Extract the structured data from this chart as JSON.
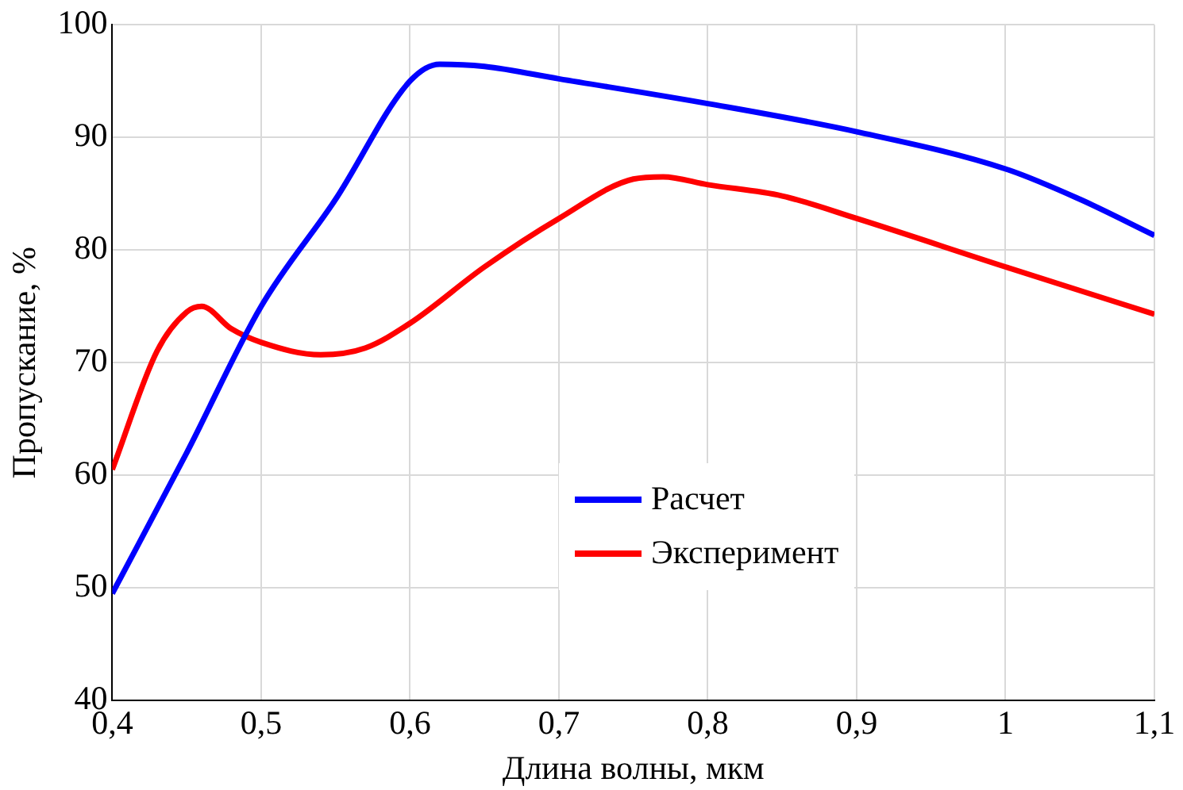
{
  "chart_data": {
    "type": "line",
    "xlabel": "Длина волны, мкм",
    "ylabel": "Пропускание, %",
    "xlim": [
      0.4,
      1.1
    ],
    "xticks": [
      {
        "value": 0.4,
        "label": "0,4"
      },
      {
        "value": 0.5,
        "label": "0,5"
      },
      {
        "value": 0.6,
        "label": "0,6"
      },
      {
        "value": 0.7,
        "label": "0,7"
      },
      {
        "value": 0.8,
        "label": "0,8"
      },
      {
        "value": 0.9,
        "label": "0,9"
      },
      {
        "value": 1,
        "label": "1"
      },
      {
        "value": 1.1,
        "label": "1,1"
      }
    ],
    "ylim": [
      40,
      100
    ],
    "yticks": [
      40,
      50,
      60,
      70,
      80,
      90,
      100
    ],
    "grid": true,
    "legend": "bottom right",
    "marker": "none",
    "line_style": "solid",
    "series": [
      {
        "name": "Расчет",
        "color": "#0000ff",
        "x": [
          0.4,
          0.45,
          0.5,
          0.55,
          0.6,
          0.62,
          0.65,
          0.7,
          0.8,
          0.9,
          1.0,
          1.05,
          1.1
        ],
        "values": [
          49.5,
          62,
          75,
          84.5,
          95,
          96.5,
          96.3,
          95.2,
          93,
          90.5,
          87.2,
          84.5,
          81.3
        ]
      },
      {
        "name": "Эксперимент",
        "color": "#ff0000",
        "x": [
          0.4,
          0.43,
          0.45,
          0.46,
          0.48,
          0.5,
          0.54,
          0.57,
          0.6,
          0.65,
          0.7,
          0.75,
          0.77,
          0.8,
          0.85,
          0.9,
          1.0,
          1.1
        ],
        "values": [
          60.5,
          71,
          74.5,
          75,
          73,
          71.8,
          70.7,
          71.3,
          73.5,
          78.5,
          82.8,
          86.3,
          86.5,
          85.8,
          84.8,
          82.8,
          78.5,
          74.3
        ]
      }
    ]
  }
}
